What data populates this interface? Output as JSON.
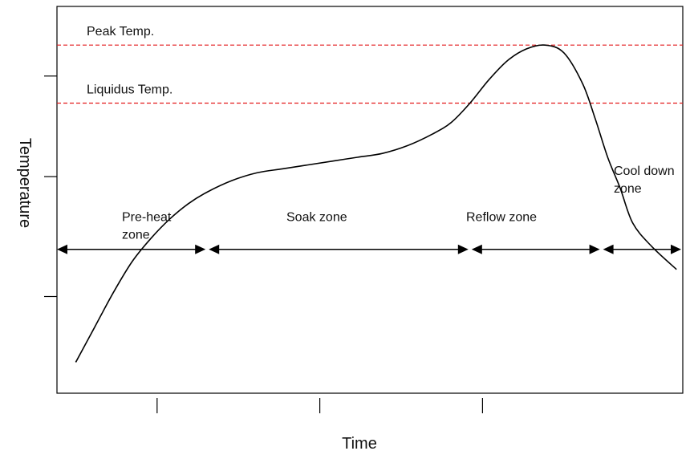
{
  "chart_data": {
    "type": "line",
    "xlabel": "Time",
    "ylabel": "Temperature",
    "xlim": [
      0,
      100
    ],
    "ylim": [
      0,
      100
    ],
    "x_ticks": [
      16,
      42,
      68
    ],
    "y_ticks": [
      25,
      56,
      82
    ],
    "reference_lines": [
      {
        "label": "Peak Temp.",
        "value": 90,
        "color": "#e31a1c",
        "style": "dashed"
      },
      {
        "label": "Liquidus Temp.",
        "value": 75,
        "color": "#e31a1c",
        "style": "dashed"
      }
    ],
    "zones": [
      {
        "label": "Pre-heat zone",
        "x_start": 0,
        "x_end": 24
      },
      {
        "label": "Soak zone",
        "x_start": 24,
        "x_end": 66
      },
      {
        "label": "Reflow zone",
        "x_start": 66,
        "x_end": 87
      },
      {
        "label": "Cool down zone",
        "x_start": 87,
        "x_end": 100
      }
    ],
    "series": [
      {
        "color": "#000000",
        "points": [
          [
            3,
            8
          ],
          [
            6,
            17
          ],
          [
            9,
            26
          ],
          [
            12,
            34
          ],
          [
            15,
            40
          ],
          [
            18,
            45
          ],
          [
            21,
            49
          ],
          [
            24,
            52
          ],
          [
            28,
            55
          ],
          [
            32,
            57
          ],
          [
            36,
            58
          ],
          [
            40,
            59
          ],
          [
            44,
            60
          ],
          [
            48,
            61
          ],
          [
            52,
            62
          ],
          [
            56,
            64
          ],
          [
            60,
            67
          ],
          [
            63,
            70
          ],
          [
            66,
            75
          ],
          [
            69,
            81
          ],
          [
            72,
            86
          ],
          [
            75,
            89
          ],
          [
            78,
            90
          ],
          [
            81,
            88
          ],
          [
            84,
            80
          ],
          [
            86,
            71
          ],
          [
            88,
            61
          ],
          [
            90,
            53
          ],
          [
            92,
            44
          ],
          [
            95,
            38
          ],
          [
            99,
            32
          ]
        ]
      }
    ]
  }
}
